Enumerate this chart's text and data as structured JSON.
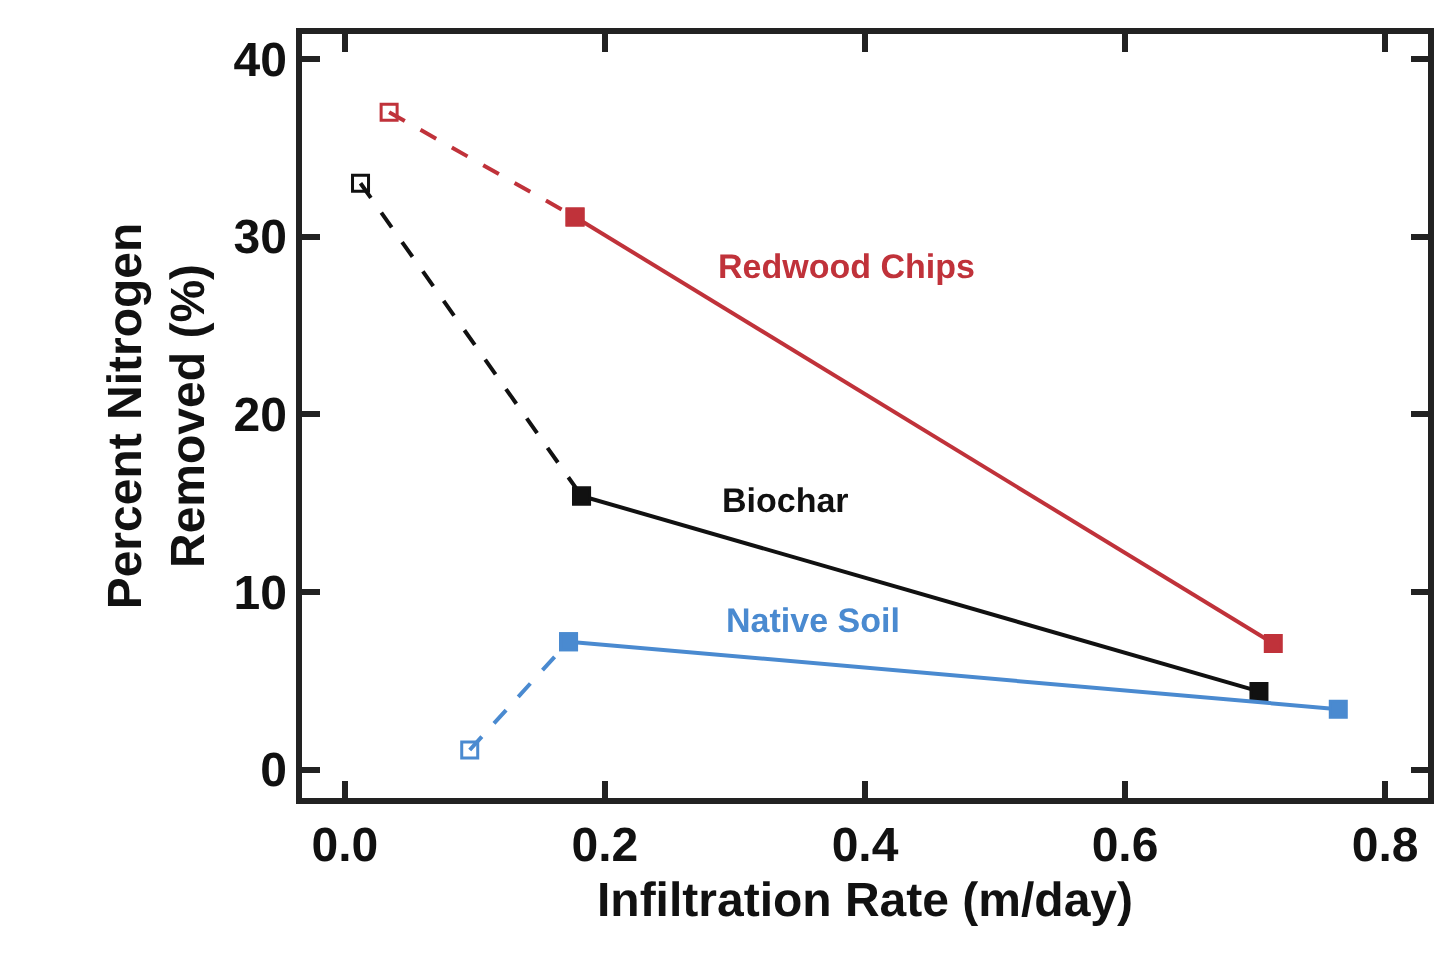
{
  "chart_data": {
    "type": "line",
    "xlabel": "Infiltration Rate (m/day)",
    "ylabel": "Percent Nitrogen\nRemoved (%)",
    "xlim": [
      -0.033,
      0.833
    ],
    "xticks": [
      {
        "value": 0,
        "label": "0.0"
      },
      0.2,
      0.4,
      0.6,
      0.8
    ],
    "ylim": [
      -1.6,
      41.4
    ],
    "yticks": [
      0,
      10,
      20,
      30,
      40
    ],
    "grid": false,
    "legend": false,
    "marker": "square",
    "series": [
      {
        "color": "#c0323a",
        "line_style": "dashed",
        "x": [
          0.034,
          0.177
        ],
        "values": [
          37.0,
          31.1
        ]
      },
      {
        "name": "Redwood Chips",
        "color": "#c0323a",
        "line_style": "solid",
        "x": [
          0.177,
          0.714
        ],
        "values": [
          31.1,
          7.1
        ]
      },
      {
        "color": "#111111",
        "line_style": "dashed",
        "x": [
          0.012,
          0.182
        ],
        "values": [
          33.0,
          15.4
        ]
      },
      {
        "name": "Biochar",
        "color": "#111111",
        "line_style": "solid",
        "x": [
          0.182,
          0.703
        ],
        "values": [
          15.4,
          4.4
        ]
      },
      {
        "color": "#4a8ad0",
        "line_style": "dashed",
        "x": [
          0.096,
          0.172
        ],
        "values": [
          1.1,
          7.2
        ]
      },
      {
        "name": "Native Soil",
        "color": "#4a8ad0",
        "line_style": "solid",
        "x": [
          0.172,
          0.764
        ],
        "values": [
          7.2,
          3.4
        ]
      }
    ]
  }
}
